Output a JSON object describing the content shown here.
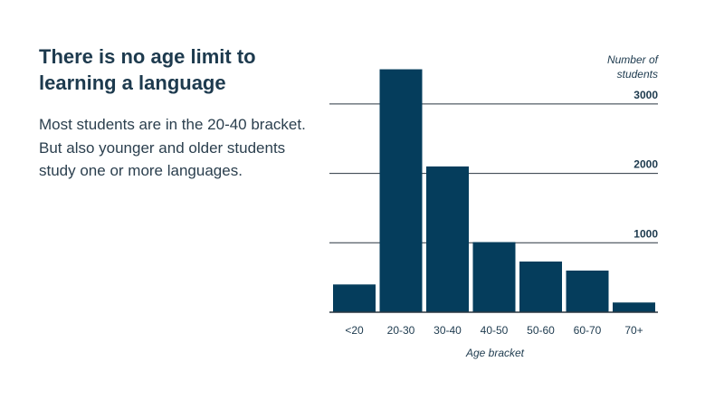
{
  "headline": "There is no age limit to learning a language",
  "body": "Most students are in the 20-40 bracket. But also younger and older students study one or more languages.",
  "chart_data": {
    "type": "bar",
    "title": "",
    "categories": [
      "<20",
      "20-30",
      "30-40",
      "40-50",
      "50-60",
      "60-70",
      "70+"
    ],
    "values": [
      400,
      3500,
      2100,
      1010,
      730,
      600,
      140
    ],
    "xlabel": "Age bracket",
    "ylabel_lines": [
      "Number of",
      "students"
    ],
    "yticks": [
      1000,
      2000,
      3000
    ],
    "ylim": [
      0,
      3500
    ],
    "grid": true,
    "bar_color": "#053d5c"
  }
}
